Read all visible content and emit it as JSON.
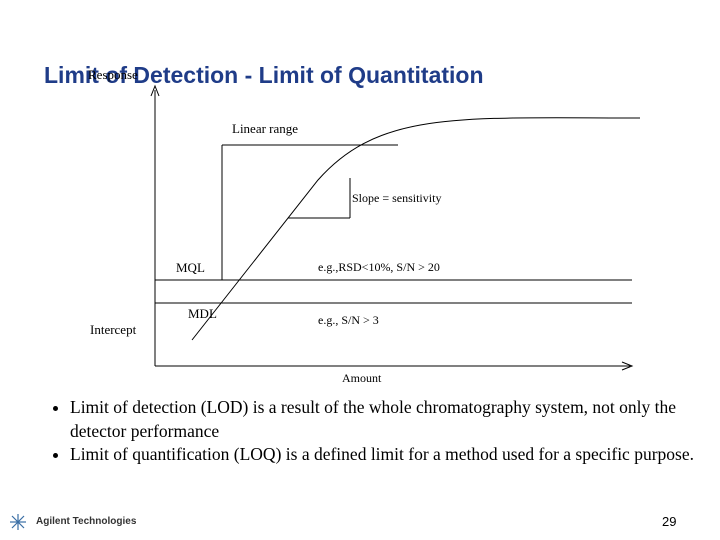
{
  "header": {
    "title": "Limit of Detection - Limit of Quantitation"
  },
  "diagram": {
    "y_axis_label": "Response",
    "x_axis_label": "Amount",
    "labels": {
      "linear_range": "Linear range",
      "slope": "Slope = sensitivity",
      "mql": "MQL",
      "mql_note": "e.g.,RSD<10%, S/N > 20",
      "mdl": "MDL",
      "mdl_note": "e.g., S/N > 3",
      "intercept": "Intercept"
    }
  },
  "bullets": [
    "Limit of detection (LOD) is a result of the whole chromatography system, not only the detector performance",
    "Limit of quantification (LOQ) is a defined limit for a method used for a specific purpose."
  ],
  "footer": {
    "logo_text": "Agilent Technologies",
    "page_number": "29"
  }
}
